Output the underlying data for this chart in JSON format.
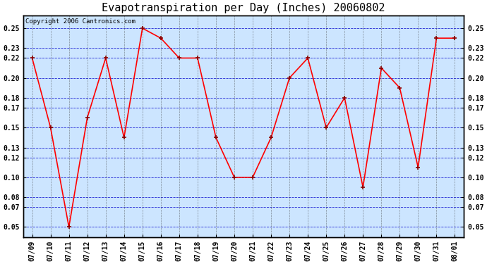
{
  "title": "Evapotranspiration per Day (Inches) 20060802",
  "copyright_text": "Copyright 2006 Cantronics.com",
  "x_labels": [
    "07/09",
    "07/10",
    "07/11",
    "07/12",
    "07/13",
    "07/14",
    "07/15",
    "07/16",
    "07/17",
    "07/18",
    "07/19",
    "07/20",
    "07/21",
    "07/22",
    "07/23",
    "07/24",
    "07/25",
    "07/26",
    "07/27",
    "07/28",
    "07/29",
    "07/30",
    "07/31",
    "08/01"
  ],
  "y_values": [
    0.22,
    0.15,
    0.05,
    0.16,
    0.22,
    0.14,
    0.25,
    0.24,
    0.22,
    0.22,
    0.14,
    0.1,
    0.1,
    0.14,
    0.2,
    0.22,
    0.15,
    0.18,
    0.09,
    0.21,
    0.19,
    0.11,
    0.24,
    0.24
  ],
  "y_ticks": [
    0.05,
    0.07,
    0.08,
    0.1,
    0.12,
    0.13,
    0.15,
    0.17,
    0.18,
    0.2,
    0.22,
    0.23,
    0.25
  ],
  "ylim": [
    0.04,
    0.263
  ],
  "line_color": "red",
  "marker": "+",
  "marker_color": "darkred",
  "bg_color": "#ffffff",
  "plot_bg_color": "#cce5ff",
  "grid_color_h": "#0000cc",
  "grid_color_v": "#333333",
  "border_color": "black",
  "title_fontsize": 11,
  "tick_fontsize": 7,
  "copyright_fontsize": 6.5
}
